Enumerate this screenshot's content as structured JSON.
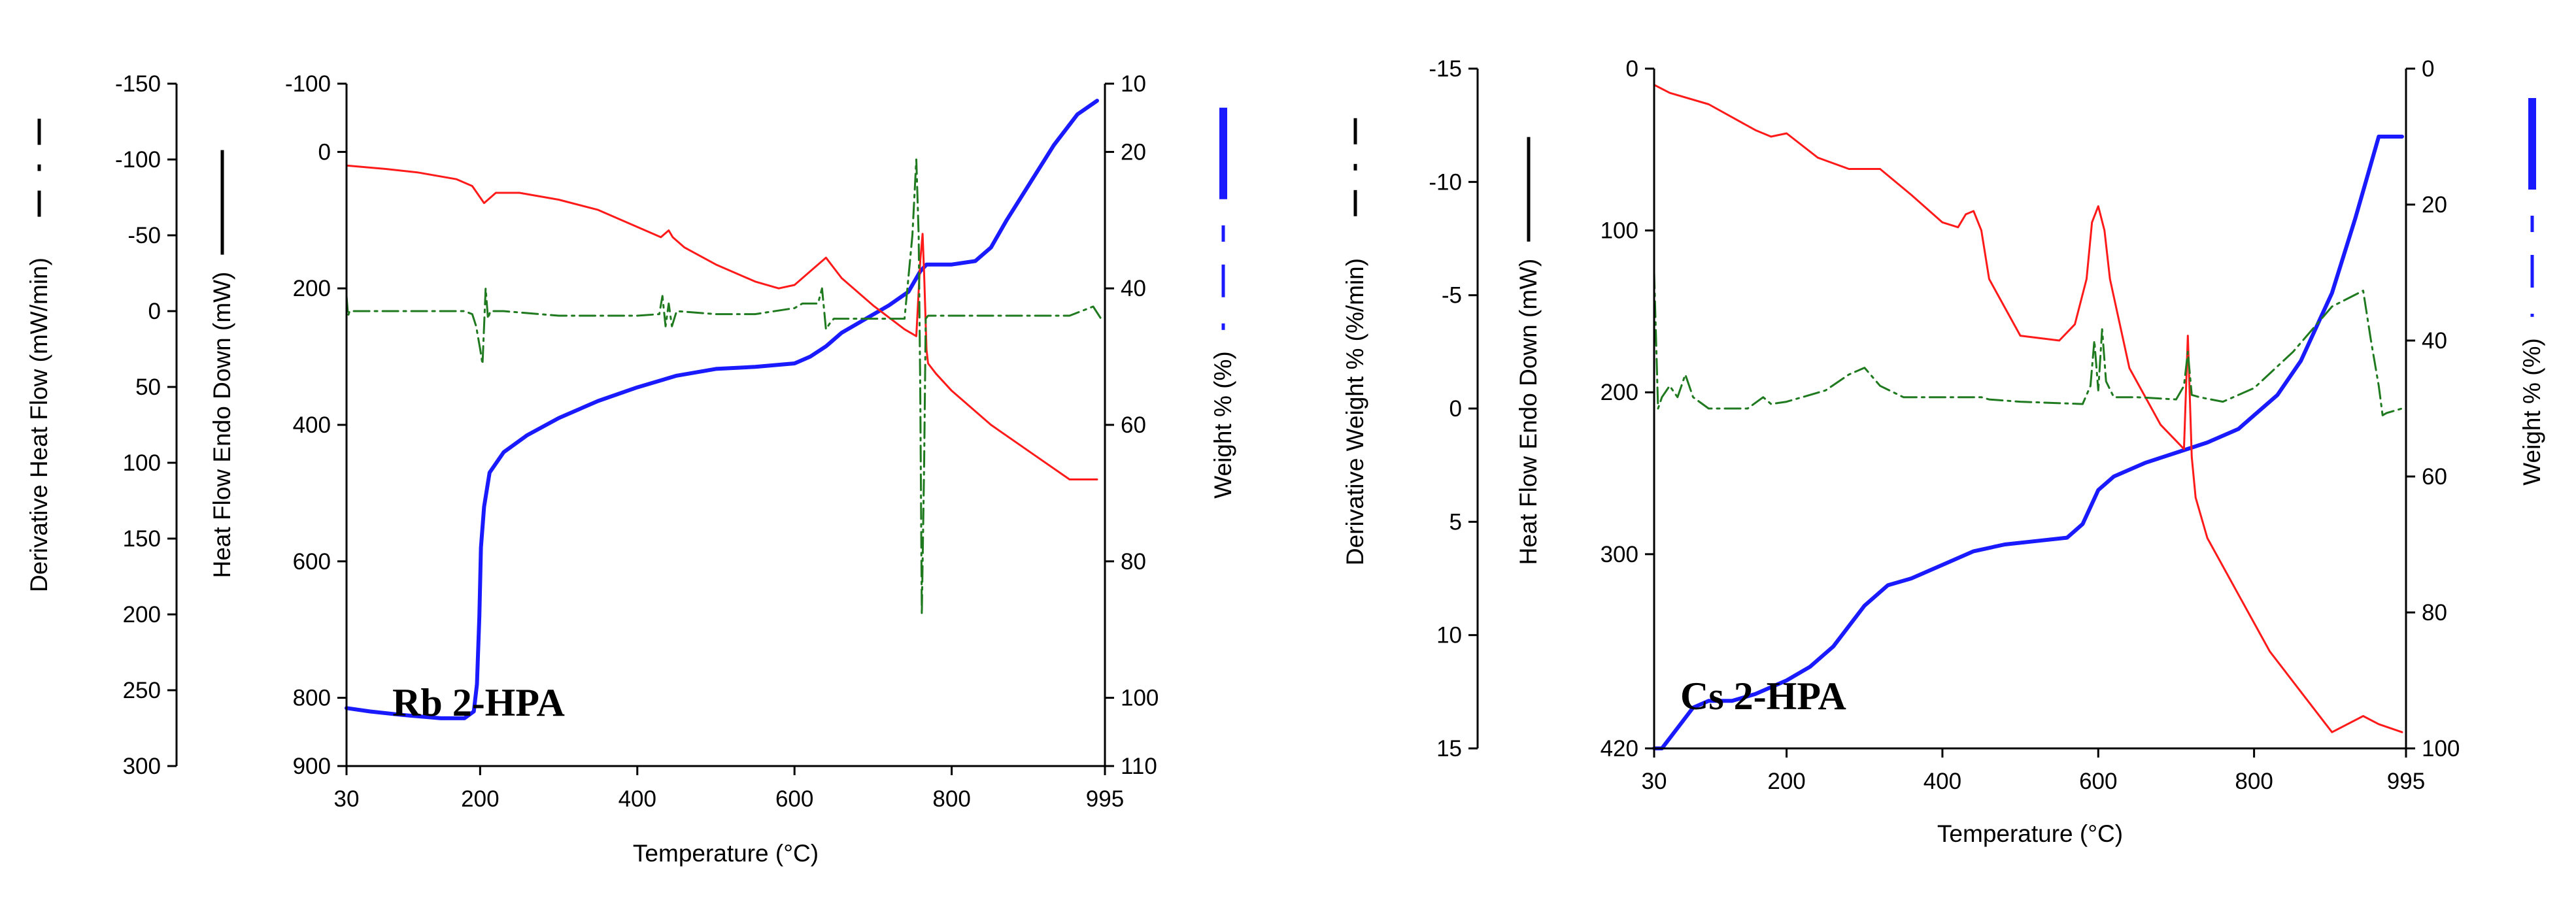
{
  "chart_data": [
    {
      "type": "line",
      "title": "Rb 2-HPA",
      "xlabel": "Temperature (°C)",
      "xlim": [
        30,
        995
      ],
      "xticks": [
        30,
        200,
        400,
        600,
        800,
        995
      ],
      "axes": [
        {
          "id": "deriv",
          "label": "Derivative Heat Flow (mW/min)",
          "range": [
            -150,
            300
          ],
          "ticks": [
            -150,
            -100,
            -50,
            0,
            50,
            100,
            150,
            200,
            250,
            300
          ],
          "legend": "dash-dot",
          "legend_color": "#000000"
        },
        {
          "id": "heat",
          "label": "Heat Flow Endo Down (mW)",
          "range": [
            -100,
            900
          ],
          "ticks": [
            -100,
            0,
            200,
            400,
            600,
            800,
            900
          ],
          "legend": "solid",
          "legend_color": "#000000"
        },
        {
          "id": "weight",
          "label": "Weight % (%)",
          "range": [
            10,
            110
          ],
          "ticks": [
            10,
            20,
            40,
            60,
            80,
            100,
            110
          ],
          "legend": "weight",
          "legend_color": "#1a1aff"
        }
      ],
      "series": [
        {
          "name": "Weight %",
          "axis": "weight",
          "color": "#1a1aff",
          "width": 6,
          "x": [
            30,
            60,
            100,
            150,
            180,
            192,
            196,
            199,
            201,
            205,
            212,
            230,
            260,
            300,
            350,
            400,
            450,
            500,
            550,
            600,
            620,
            640,
            660,
            690,
            720,
            745,
            760,
            768,
            775,
            800,
            830,
            850,
            870,
            900,
            930,
            960,
            985
          ],
          "y": [
            101.5,
            102,
            102.5,
            103,
            103,
            102,
            98,
            88,
            78,
            72,
            67,
            64,
            61.5,
            59,
            56.5,
            54.5,
            52.8,
            51.8,
            51.5,
            51,
            50,
            48.5,
            46.5,
            44.5,
            42.5,
            40.5,
            37.5,
            36.5,
            36.5,
            36.5,
            36,
            34,
            30,
            24.5,
            19,
            14.5,
            12.5
          ]
        },
        {
          "name": "Heat Flow",
          "axis": "heat",
          "color": "#ff1a1a",
          "width": 3,
          "x": [
            30,
            80,
            120,
            170,
            190,
            205,
            220,
            250,
            300,
            350,
            400,
            430,
            440,
            445,
            460,
            500,
            550,
            580,
            600,
            620,
            640,
            660,
            700,
            740,
            755,
            760,
            763,
            765,
            768,
            770,
            780,
            800,
            850,
            900,
            950,
            985
          ],
          "y": [
            20,
            25,
            30,
            40,
            50,
            75,
            60,
            60,
            70,
            85,
            110,
            125,
            115,
            125,
            140,
            165,
            190,
            200,
            195,
            175,
            155,
            185,
            225,
            260,
            270,
            160,
            120,
            180,
            290,
            310,
            325,
            350,
            400,
            440,
            480,
            480
          ]
        },
        {
          "name": "Derivative Heat Flow",
          "axis": "deriv",
          "color": "#1f7a1f",
          "width": 3,
          "dash": "24,8,4,8",
          "x": [
            30,
            32,
            34,
            40,
            100,
            150,
            180,
            190,
            195,
            200,
            203,
            207,
            210,
            213,
            220,
            230,
            300,
            400,
            428,
            432,
            436,
            440,
            444,
            450,
            500,
            550,
            600,
            610,
            625,
            630,
            635,
            640,
            645,
            650,
            700,
            740,
            750,
            755,
            758,
            760,
            762,
            765,
            767,
            770,
            775,
            800,
            850,
            900,
            950,
            980,
            990
          ],
          "y": [
            -10,
            3,
            0,
            0,
            0,
            0,
            0,
            2,
            10,
            25,
            35,
            -15,
            5,
            0,
            0,
            0,
            3,
            3,
            2,
            -10,
            10,
            -5,
            10,
            0,
            2,
            2,
            -2,
            -5,
            -5,
            -5,
            -15,
            12,
            8,
            5,
            5,
            5,
            -50,
            -100,
            -50,
            50,
            200,
            100,
            5,
            3,
            3,
            3,
            3,
            3,
            3,
            -3,
            5
          ]
        }
      ]
    },
    {
      "type": "line",
      "title": "Cs 2-HPA",
      "xlabel": "Temperature (°C)",
      "xlim": [
        30,
        995
      ],
      "xticks": [
        30,
        200,
        400,
        600,
        800,
        995
      ],
      "axes": [
        {
          "id": "deriv",
          "label": "Derivative Weight % (%/min)",
          "range": [
            -15,
            15
          ],
          "ticks": [
            -15,
            -10,
            -5,
            0,
            5,
            10,
            15
          ],
          "legend": "dash-dot",
          "legend_color": "#000000"
        },
        {
          "id": "heat",
          "label": "Heat Flow Endo Down (mW)",
          "range": [
            0,
            420
          ],
          "ticks": [
            0,
            100,
            200,
            300,
            420
          ],
          "legend": "solid",
          "legend_color": "#000000"
        },
        {
          "id": "weight",
          "label": "Weight % (%)",
          "range": [
            0,
            100
          ],
          "ticks": [
            0,
            20,
            40,
            60,
            80,
            100
          ],
          "legend": "weight",
          "legend_color": "#1a1aff"
        }
      ],
      "series": [
        {
          "name": "Weight %",
          "axis": "weight",
          "color": "#1a1aff",
          "width": 6,
          "x": [
            30,
            40,
            60,
            80,
            100,
            130,
            160,
            200,
            230,
            260,
            300,
            330,
            360,
            400,
            440,
            480,
            520,
            560,
            580,
            600,
            620,
            660,
            700,
            740,
            780,
            800,
            830,
            860,
            900,
            930,
            950,
            960,
            975,
            990
          ],
          "y": [
            100,
            100,
            97,
            94,
            93,
            93,
            92,
            90,
            88,
            85,
            79,
            76,
            75,
            73,
            71,
            70,
            69.5,
            69,
            67,
            62,
            60,
            58,
            56.5,
            55,
            53,
            51,
            48,
            43,
            33,
            22,
            14,
            10,
            10,
            10
          ]
        },
        {
          "name": "Heat Flow",
          "axis": "heat",
          "color": "#ff1a1a",
          "width": 3,
          "x": [
            30,
            50,
            100,
            160,
            180,
            200,
            240,
            280,
            320,
            360,
            400,
            420,
            430,
            440,
            450,
            460,
            500,
            550,
            570,
            585,
            592,
            600,
            608,
            615,
            640,
            680,
            710,
            715,
            720,
            725,
            740,
            780,
            820,
            860,
            900,
            940,
            960,
            990
          ],
          "y": [
            10,
            15,
            22,
            38,
            42,
            40,
            55,
            62,
            62,
            78,
            95,
            98,
            90,
            88,
            100,
            130,
            165,
            168,
            158,
            130,
            95,
            85,
            100,
            130,
            185,
            220,
            235,
            165,
            240,
            265,
            290,
            325,
            360,
            385,
            410,
            400,
            405,
            410
          ]
        },
        {
          "name": "Derivative Weight %",
          "axis": "deriv",
          "color": "#1f7a1f",
          "width": 3,
          "dash": "24,8,4,8",
          "x": [
            30,
            35,
            40,
            50,
            60,
            70,
            80,
            100,
            150,
            170,
            180,
            200,
            250,
            280,
            300,
            320,
            350,
            400,
            450,
            460,
            500,
            580,
            590,
            595,
            600,
            605,
            610,
            620,
            650,
            700,
            710,
            715,
            720,
            730,
            760,
            800,
            850,
            900,
            940,
            950,
            960,
            965,
            970,
            990
          ],
          "y": [
            -6,
            0,
            -0.5,
            -1,
            -0.5,
            -1.5,
            -0.5,
            0,
            0,
            -0.5,
            -0.2,
            -0.3,
            -0.8,
            -1.5,
            -1.8,
            -1,
            -0.5,
            -0.5,
            -0.5,
            -0.4,
            -0.3,
            -0.2,
            -1,
            -3,
            -0.8,
            -3.5,
            -1.2,
            -0.5,
            -0.5,
            -0.4,
            -1,
            -2.5,
            -0.6,
            -0.5,
            -0.3,
            -0.9,
            -2.5,
            -4.5,
            -5.2,
            -3,
            -1,
            0.3,
            0.2,
            0
          ]
        }
      ]
    }
  ]
}
